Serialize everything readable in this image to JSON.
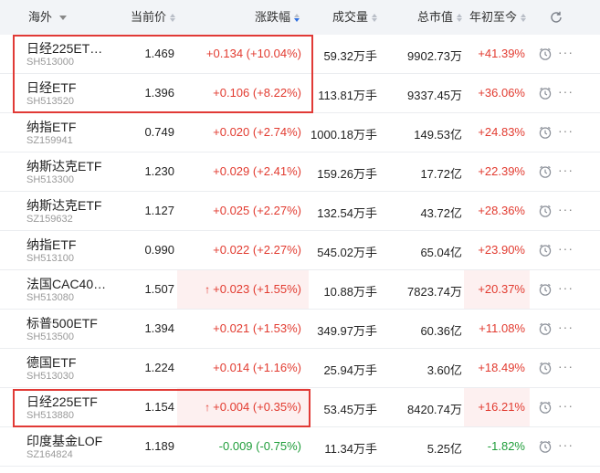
{
  "header": {
    "market": "海外",
    "price": "当前价",
    "change": "涨跌幅",
    "volume": "成交量",
    "market_cap": "总市值",
    "ytd": "年初至今"
  },
  "rows": [
    {
      "name": "日经225ET…",
      "code": "SH513000",
      "price": "1.469",
      "change": "+0.134 (+10.04%)",
      "volume": "59.32万手",
      "cap": "9902.73万",
      "ytd": "+41.39%",
      "dir": "up",
      "arrow": false,
      "hl_chg": false,
      "hl_ytd": false
    },
    {
      "name": "日经ETF",
      "code": "SH513520",
      "price": "1.396",
      "change": "+0.106 (+8.22%)",
      "volume": "113.81万手",
      "cap": "9337.45万",
      "ytd": "+36.06%",
      "dir": "up",
      "arrow": false,
      "hl_chg": false,
      "hl_ytd": false
    },
    {
      "name": "纳指ETF",
      "code": "SZ159941",
      "price": "0.749",
      "change": "+0.020 (+2.74%)",
      "volume": "1000.18万手",
      "cap": "149.53亿",
      "ytd": "+24.83%",
      "dir": "up",
      "arrow": false,
      "hl_chg": false,
      "hl_ytd": false
    },
    {
      "name": "纳斯达克ETF",
      "code": "SH513300",
      "price": "1.230",
      "change": "+0.029 (+2.41%)",
      "volume": "159.26万手",
      "cap": "17.72亿",
      "ytd": "+22.39%",
      "dir": "up",
      "arrow": false,
      "hl_chg": false,
      "hl_ytd": false
    },
    {
      "name": "纳斯达克ETF",
      "code": "SZ159632",
      "price": "1.127",
      "change": "+0.025 (+2.27%)",
      "volume": "132.54万手",
      "cap": "43.72亿",
      "ytd": "+28.36%",
      "dir": "up",
      "arrow": false,
      "hl_chg": false,
      "hl_ytd": false
    },
    {
      "name": "纳指ETF",
      "code": "SH513100",
      "price": "0.990",
      "change": "+0.022 (+2.27%)",
      "volume": "545.02万手",
      "cap": "65.04亿",
      "ytd": "+23.90%",
      "dir": "up",
      "arrow": false,
      "hl_chg": false,
      "hl_ytd": false
    },
    {
      "name": "法国CAC40…",
      "code": "SH513080",
      "price": "1.507",
      "change": "+0.023 (+1.55%)",
      "volume": "10.88万手",
      "cap": "7823.74万",
      "ytd": "+20.37%",
      "dir": "up",
      "arrow": true,
      "hl_chg": true,
      "hl_ytd": true
    },
    {
      "name": "标普500ETF",
      "code": "SH513500",
      "price": "1.394",
      "change": "+0.021 (+1.53%)",
      "volume": "349.97万手",
      "cap": "60.36亿",
      "ytd": "+11.08%",
      "dir": "up",
      "arrow": false,
      "hl_chg": false,
      "hl_ytd": false
    },
    {
      "name": "德国ETF",
      "code": "SH513030",
      "price": "1.224",
      "change": "+0.014 (+1.16%)",
      "volume": "25.94万手",
      "cap": "3.60亿",
      "ytd": "+18.49%",
      "dir": "up",
      "arrow": false,
      "hl_chg": false,
      "hl_ytd": false
    },
    {
      "name": "日经225ETF",
      "code": "SH513880",
      "price": "1.154",
      "change": "+0.004 (+0.35%)",
      "volume": "53.45万手",
      "cap": "8420.74万",
      "ytd": "+16.21%",
      "dir": "up",
      "arrow": true,
      "hl_chg": true,
      "hl_ytd": true
    },
    {
      "name": "印度基金LOF",
      "code": "SZ164824",
      "price": "1.189",
      "change": "-0.009 (-0.75%)",
      "volume": "11.34万手",
      "cap": "5.25亿",
      "ytd": "-1.82%",
      "dir": "down",
      "arrow": false,
      "hl_chg": false,
      "hl_ytd": false
    }
  ],
  "colors": {
    "up": "#e23b30",
    "down": "#1f9d3a",
    "highlight_box": "#e13a36",
    "header_bg": "#f2f4f7",
    "active_sort": "#2f6fe0"
  },
  "icons": {
    "refresh": "refresh-icon",
    "clock": "clock-icon",
    "more": "more-icon"
  }
}
